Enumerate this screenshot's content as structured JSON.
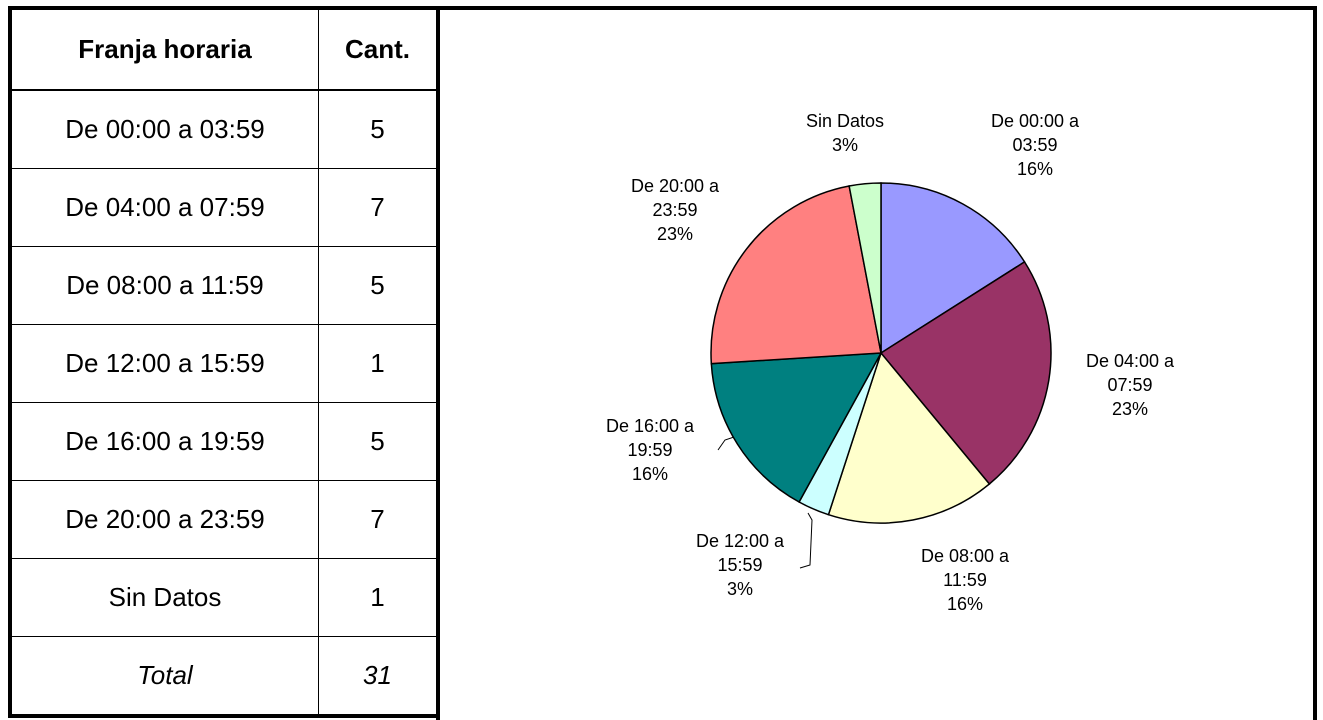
{
  "table": {
    "header": [
      "Franja horaria",
      "Cant."
    ],
    "rows": [
      [
        "De 00:00 a 03:59",
        "5"
      ],
      [
        "De 04:00 a 07:59",
        "7"
      ],
      [
        "De 08:00 a 11:59",
        "5"
      ],
      [
        "De 12:00 a 15:59",
        "1"
      ],
      [
        "De 16:00 a 19:59",
        "5"
      ],
      [
        "De 20:00 a 23:59",
        "7"
      ],
      [
        "Sin Datos",
        "1"
      ]
    ],
    "total": [
      "Total",
      "31"
    ]
  },
  "chart_data": {
    "type": "pie",
    "categories": [
      "De 00:00 a 03:59",
      "De 04:00 a 07:59",
      "De 08:00 a 11:59",
      "De 12:00 a 15:59",
      "De 16:00 a 19:59",
      "De 20:00 a 23:59",
      "Sin Datos"
    ],
    "values": [
      16,
      23,
      16,
      3,
      16,
      23,
      3
    ],
    "value_labels": [
      "16%",
      "23%",
      "16%",
      "3%",
      "16%",
      "23%",
      "3%"
    ],
    "colors": [
      "#9999ff",
      "#993366",
      "#ffffcc",
      "#ccffff",
      "#008080",
      "#ff8080",
      "#ccffcc"
    ]
  }
}
